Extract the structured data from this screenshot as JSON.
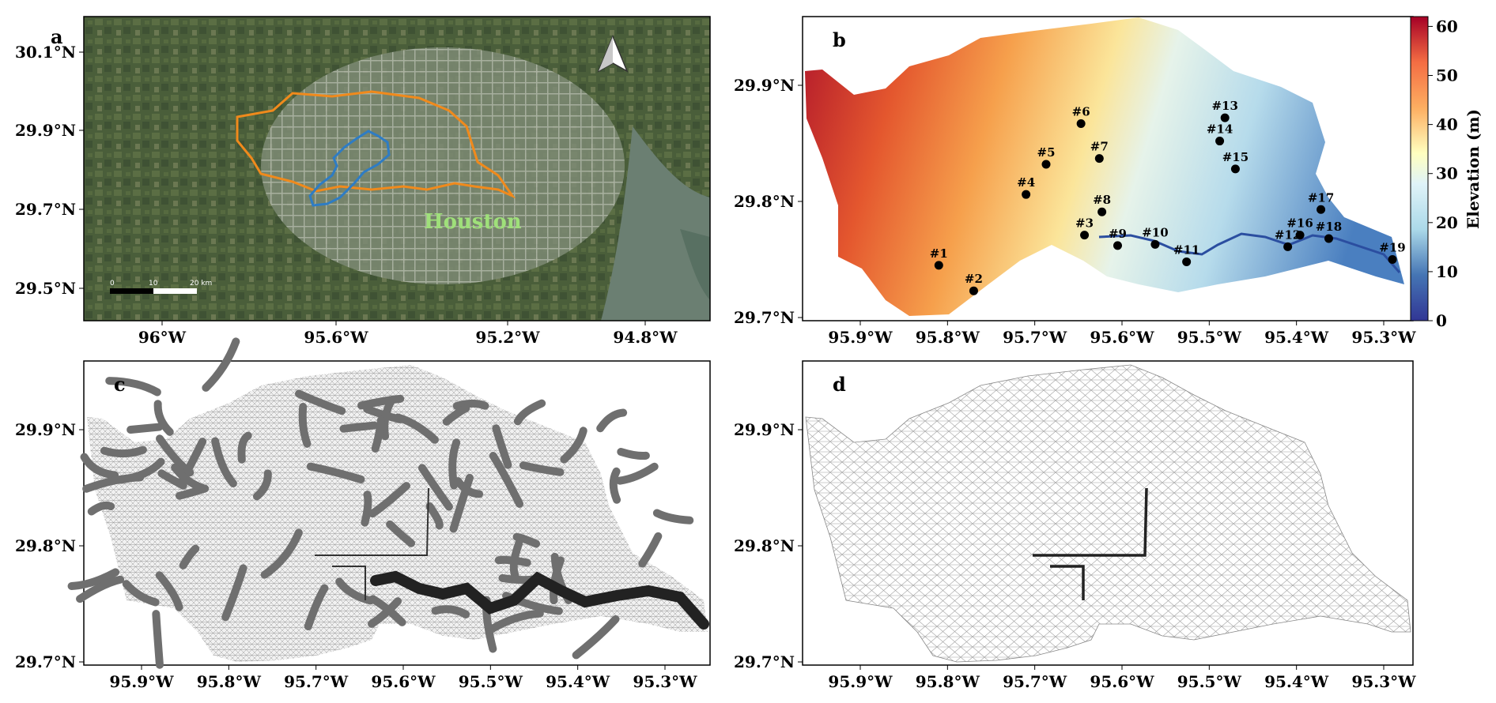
{
  "panels": {
    "a": {
      "label": "a",
      "city_label": "Houston",
      "lat_ticks": [
        "30.1°N",
        "29.9°N",
        "29.7°N",
        "29.5°N"
      ],
      "lon_ticks": [
        "96°W",
        "95.6°W",
        "95.2°W",
        "94.8°W"
      ],
      "scale_bar": [
        "0",
        "10",
        "20 km"
      ],
      "colors": {
        "watershed_outline": "#f08a1c",
        "reservoir_outline": "#2e7cc4",
        "city_label": "#9fe07a"
      },
      "icons": [
        "north-arrow-icon"
      ]
    },
    "b": {
      "label": "b",
      "lat_ticks": [
        "29.9°N",
        "29.8°N",
        "29.7°N"
      ],
      "lon_ticks": [
        "95.9°W",
        "95.8°W",
        "95.7°W",
        "95.6°W",
        "95.5°W",
        "95.4°W",
        "95.3°W"
      ],
      "colorbar": {
        "label": "Elevation (m)",
        "ticks": [
          "60",
          "50",
          "40",
          "30",
          "20",
          "10",
          "0"
        ],
        "range": [
          0,
          62
        ],
        "colormap": "RdYlBu_r"
      },
      "stations": [
        {
          "id": "#1",
          "lon": -95.81,
          "lat": 29.745
        },
        {
          "id": "#2",
          "lon": -95.77,
          "lat": 29.723
        },
        {
          "id": "#3",
          "lon": -95.643,
          "lat": 29.771
        },
        {
          "id": "#4",
          "lon": -95.71,
          "lat": 29.806
        },
        {
          "id": "#5",
          "lon": -95.687,
          "lat": 29.832
        },
        {
          "id": "#6",
          "lon": -95.647,
          "lat": 29.867
        },
        {
          "id": "#7",
          "lon": -95.626,
          "lat": 29.837
        },
        {
          "id": "#8",
          "lon": -95.623,
          "lat": 29.791
        },
        {
          "id": "#9",
          "lon": -95.605,
          "lat": 29.762
        },
        {
          "id": "#10",
          "lon": -95.562,
          "lat": 29.763
        },
        {
          "id": "#11",
          "lon": -95.526,
          "lat": 29.748
        },
        {
          "id": "#12",
          "lon": -95.41,
          "lat": 29.761
        },
        {
          "id": "#13",
          "lon": -95.482,
          "lat": 29.872
        },
        {
          "id": "#14",
          "lon": -95.488,
          "lat": 29.852
        },
        {
          "id": "#15",
          "lon": -95.47,
          "lat": 29.828
        },
        {
          "id": "#16",
          "lon": -95.396,
          "lat": 29.771
        },
        {
          "id": "#17",
          "lon": -95.372,
          "lat": 29.793
        },
        {
          "id": "#18",
          "lon": -95.363,
          "lat": 29.768
        },
        {
          "id": "#19",
          "lon": -95.29,
          "lat": 29.75
        }
      ]
    },
    "c": {
      "label": "c",
      "lat_ticks": [
        "29.9°N",
        "29.8°N",
        "29.7°N"
      ],
      "lon_ticks": [
        "95.9°W",
        "95.8°W",
        "95.7°W",
        "95.6°W",
        "95.5°W",
        "95.4°W",
        "95.3°W"
      ]
    },
    "d": {
      "label": "d",
      "lat_ticks": [
        "29.9°N",
        "29.8°N",
        "29.7°N"
      ],
      "lon_ticks": [
        "95.9°W",
        "95.8°W",
        "95.7°W",
        "95.6°W",
        "95.5°W",
        "95.4°W",
        "95.3°W"
      ]
    }
  }
}
